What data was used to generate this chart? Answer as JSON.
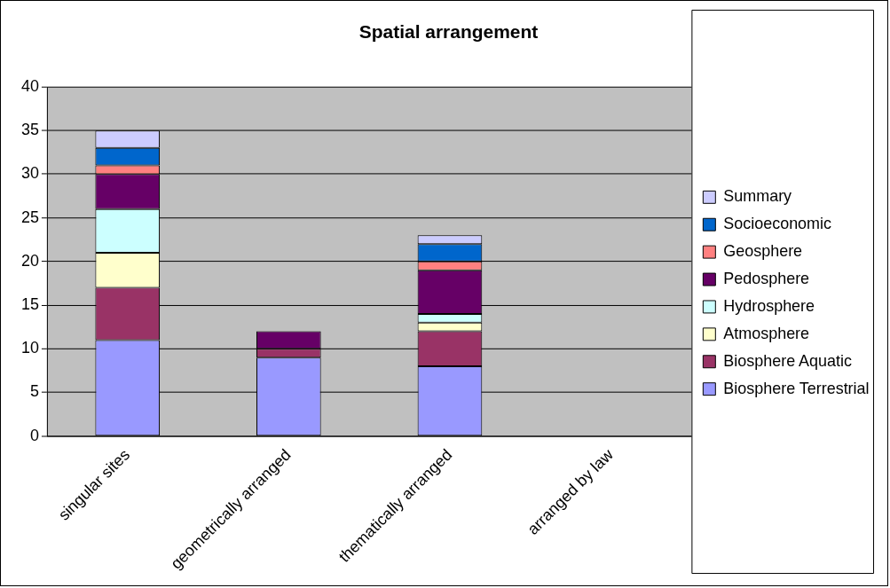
{
  "chart_data": {
    "type": "bar",
    "title": "Spatial arrangement",
    "categories": [
      "singular sites",
      "geometrically arranged",
      "thematically arranged",
      "arranged by law"
    ],
    "stacked": true,
    "ylim": [
      0,
      40
    ],
    "yticks": [
      0,
      5,
      10,
      15,
      20,
      25,
      30,
      35,
      40
    ],
    "grid": "y",
    "legend": "right",
    "series": [
      {
        "name": "Biosphere Terrestrial",
        "color": "#9999ff",
        "values": [
          11,
          9,
          8,
          0
        ]
      },
      {
        "name": "Biosphere Aquatic",
        "color": "#993366",
        "values": [
          6,
          1,
          4,
          0
        ]
      },
      {
        "name": "Atmosphere",
        "color": "#ffffcc",
        "values": [
          4,
          0,
          1,
          0
        ]
      },
      {
        "name": "Hydrosphere",
        "color": "#ccffff",
        "values": [
          5,
          0,
          1,
          0
        ]
      },
      {
        "name": "Pedosphere",
        "color": "#660066",
        "values": [
          4,
          2,
          5,
          0
        ]
      },
      {
        "name": "Geosphere",
        "color": "#ff8080",
        "values": [
          1,
          0,
          1,
          0
        ]
      },
      {
        "name": "Socioeconomic",
        "color": "#0066cc",
        "values": [
          2,
          0,
          2,
          0
        ]
      },
      {
        "name": "Summary",
        "color": "#ccccff",
        "values": [
          2,
          0,
          1,
          0
        ]
      }
    ]
  }
}
